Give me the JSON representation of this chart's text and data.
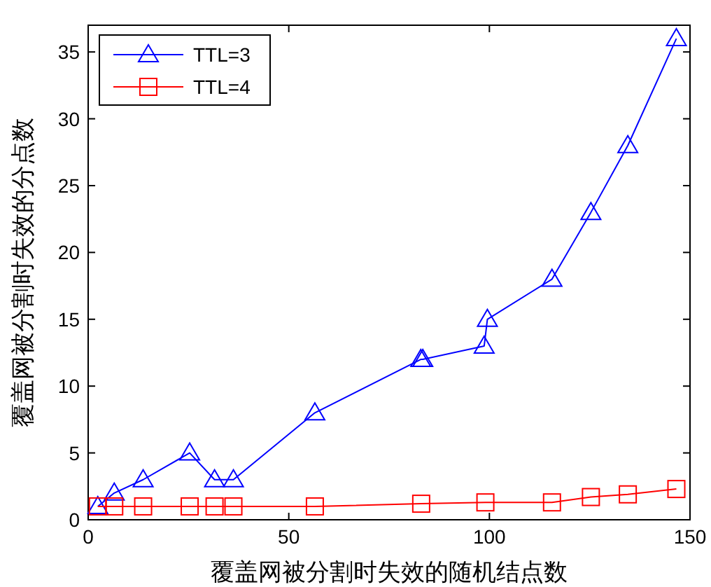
{
  "chart_data": {
    "type": "line",
    "xlabel": "覆盖网被分割时失效的随机结点数",
    "ylabel": "覆盖网被分割时失效的分点数",
    "xlim": [
      0,
      150
    ],
    "xticks": [
      0,
      50,
      100,
      150
    ],
    "ylim": [
      0,
      37
    ],
    "yticks": [
      0,
      5,
      10,
      15,
      20,
      25,
      30,
      35
    ],
    "grid": false,
    "legend": "top left",
    "line_style": "solid",
    "series": [
      {
        "name": "TTL=3",
        "color": "#0000ff",
        "marker": "triangle",
        "x": [
          2.4,
          6.5,
          13.7,
          25.3,
          31.5,
          36.2,
          56.5,
          82.9,
          83.4,
          98.7,
          99.5,
          115.6,
          125.3,
          134.5,
          146.6
        ],
        "values": [
          1,
          2,
          3,
          5,
          3,
          3,
          8,
          12,
          12,
          13,
          15,
          18,
          23,
          28,
          36
        ]
      },
      {
        "name": "TTL=4",
        "color": "#ff0000",
        "marker": "square",
        "x": [
          2.4,
          6.5,
          13.7,
          25.3,
          31.5,
          36.2,
          56.5,
          83,
          99,
          115.6,
          125.3,
          134.5,
          146.6
        ],
        "values": [
          1,
          1,
          1,
          1,
          1,
          1,
          1,
          1.2,
          1.3,
          1.3,
          1.7,
          1.9,
          2.3
        ]
      }
    ]
  }
}
